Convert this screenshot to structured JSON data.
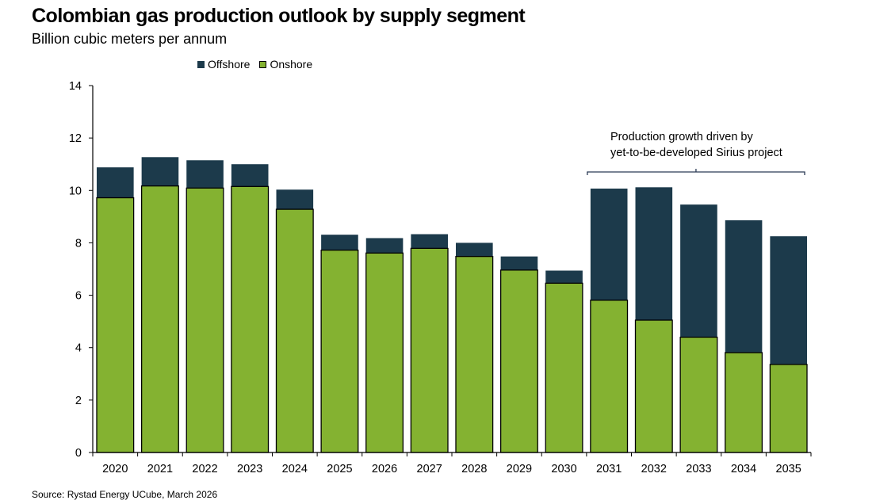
{
  "title": "Colombian gas production outlook by supply segment",
  "subtitle": "Billion cubic meters per annum",
  "source": "Source: Rystad Energy UCube, March 2026",
  "colors": {
    "offshore": "#1c3a4b",
    "onshore": "#84b231"
  },
  "chart_data": {
    "type": "bar",
    "stacked": true,
    "title": "Colombian gas production outlook by supply segment",
    "subtitle": "Billion cubic meters per annum",
    "xlabel": "",
    "ylabel": "Billion cubic meters per annum",
    "ylim": [
      0,
      14
    ],
    "yticks": [
      0,
      2,
      4,
      6,
      8,
      10,
      12,
      14
    ],
    "grid": false,
    "legend_position": "top-center",
    "categories": [
      "2020",
      "2021",
      "2022",
      "2023",
      "2024",
      "2025",
      "2026",
      "2027",
      "2028",
      "2029",
      "2030",
      "2031",
      "2032",
      "2033",
      "2034",
      "2035"
    ],
    "series": [
      {
        "name": "Onshore",
        "values": [
          9.72,
          10.17,
          10.09,
          10.15,
          9.28,
          7.72,
          7.61,
          7.79,
          7.48,
          6.96,
          6.46,
          5.81,
          5.05,
          4.4,
          3.81,
          3.36
        ]
      },
      {
        "name": "Offshore",
        "values": [
          1.16,
          1.1,
          1.06,
          0.85,
          0.75,
          0.59,
          0.57,
          0.54,
          0.52,
          0.52,
          0.48,
          4.26,
          5.07,
          5.06,
          5.05,
          4.89
        ]
      }
    ],
    "legend": [
      "Offshore",
      "Onshore"
    ],
    "annotations": [
      {
        "text_lines": [
          "Production growth driven by",
          "yet-to-be-developed Sirius project"
        ],
        "span": [
          "2031",
          "2035"
        ]
      }
    ]
  }
}
